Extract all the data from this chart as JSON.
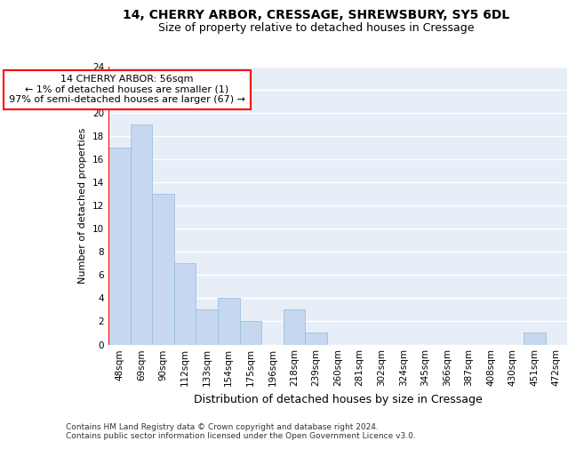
{
  "title1": "14, CHERRY ARBOR, CRESSAGE, SHREWSBURY, SY5 6DL",
  "title2": "Size of property relative to detached houses in Cressage",
  "xlabel": "Distribution of detached houses by size in Cressage",
  "ylabel": "Number of detached properties",
  "categories": [
    "48sqm",
    "69sqm",
    "90sqm",
    "112sqm",
    "133sqm",
    "154sqm",
    "175sqm",
    "196sqm",
    "218sqm",
    "239sqm",
    "260sqm",
    "281sqm",
    "302sqm",
    "324sqm",
    "345sqm",
    "366sqm",
    "387sqm",
    "408sqm",
    "430sqm",
    "451sqm",
    "472sqm"
  ],
  "values": [
    17,
    19,
    13,
    7,
    3,
    4,
    2,
    0,
    3,
    1,
    0,
    0,
    0,
    0,
    0,
    0,
    0,
    0,
    0,
    1,
    0
  ],
  "bar_color": "#c5d8ef",
  "bar_edge_color": "#9cbfdf",
  "annotation_line1": "14 CHERRY ARBOR: 56sqm",
  "annotation_line2": "← 1% of detached houses are smaller (1)",
  "annotation_line3": "97% of semi-detached houses are larger (67) →",
  "annotation_box_color": "white",
  "annotation_box_edge_color": "red",
  "vline_color": "red",
  "ylim": [
    0,
    24
  ],
  "yticks": [
    0,
    2,
    4,
    6,
    8,
    10,
    12,
    14,
    16,
    18,
    20,
    22,
    24
  ],
  "bg_color": "#e8eef8",
  "grid_color": "white",
  "footer": "Contains HM Land Registry data © Crown copyright and database right 2024.\nContains public sector information licensed under the Open Government Licence v3.0.",
  "title1_fontsize": 10,
  "title2_fontsize": 9,
  "xlabel_fontsize": 9,
  "ylabel_fontsize": 8,
  "tick_fontsize": 7.5,
  "annotation_fontsize": 8,
  "footer_fontsize": 6.5
}
